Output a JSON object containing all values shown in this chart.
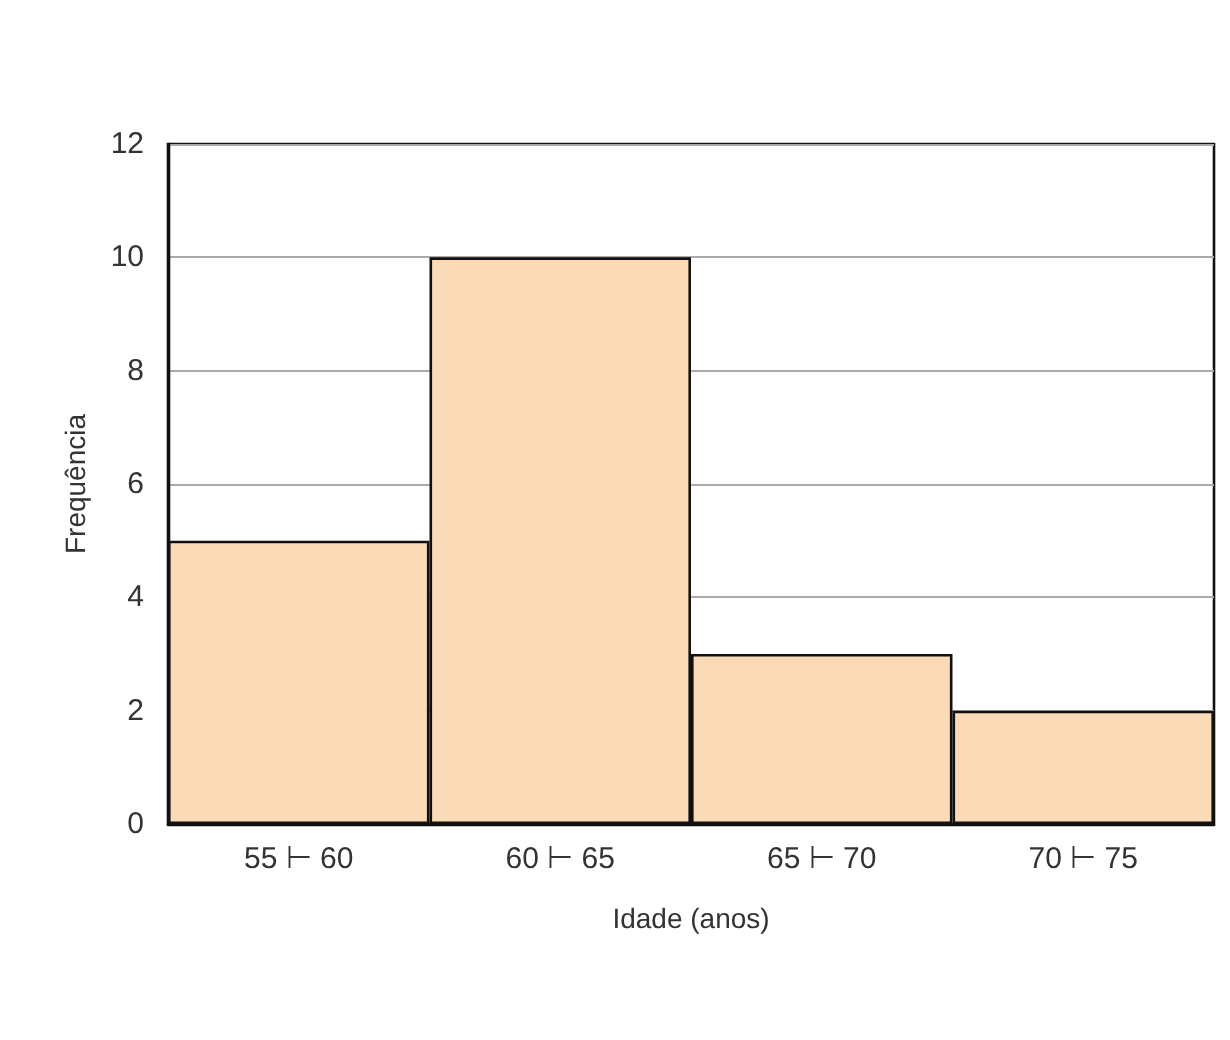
{
  "chart_data": {
    "type": "bar",
    "xlabel": "Idade (anos)",
    "ylabel": "Frequência",
    "categories": [
      "55 ⊢ 60",
      "60 ⊢ 65",
      "65 ⊢ 70",
      "70 ⊢ 75"
    ],
    "values": [
      5,
      10,
      3,
      2
    ],
    "color": "#fbdab8",
    "ylim": [
      0,
      12
    ],
    "yticks": [
      0,
      2,
      4,
      6,
      8,
      10,
      12
    ],
    "grid": "y"
  }
}
